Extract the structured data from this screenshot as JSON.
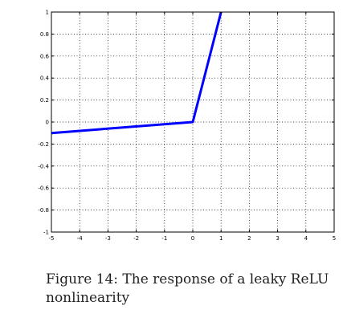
{
  "chart_data": {
    "type": "line",
    "title": "",
    "xlabel": "",
    "ylabel": "",
    "xlim": [
      -5,
      5
    ],
    "ylim": [
      -1,
      1
    ],
    "x_ticks": [
      -5,
      -4,
      -3,
      -2,
      -1,
      0,
      1,
      2,
      3,
      4,
      5
    ],
    "y_ticks": [
      -1,
      -0.8,
      -0.6,
      -0.4,
      -0.2,
      0,
      0.2,
      0.4,
      0.6,
      0.8,
      1
    ],
    "x_tick_labels": [
      "-5",
      "-4",
      "-3",
      "-2",
      "-1",
      "0",
      "1",
      "2",
      "3",
      "4",
      "5"
    ],
    "y_tick_labels": [
      "-1",
      "-0.8",
      "-0.6",
      "-0.4",
      "-0.2",
      "0",
      "0.2",
      "0.4",
      "0.6",
      "0.8",
      "1"
    ],
    "grid": true,
    "series": [
      {
        "color": "#0000ff",
        "x": [
          -5,
          0,
          1
        ],
        "y": [
          -0.1,
          0,
          1
        ]
      }
    ]
  },
  "caption": {
    "label": "Figure 14:",
    "text": "The response of a leaky ReLU nonlinearity"
  }
}
